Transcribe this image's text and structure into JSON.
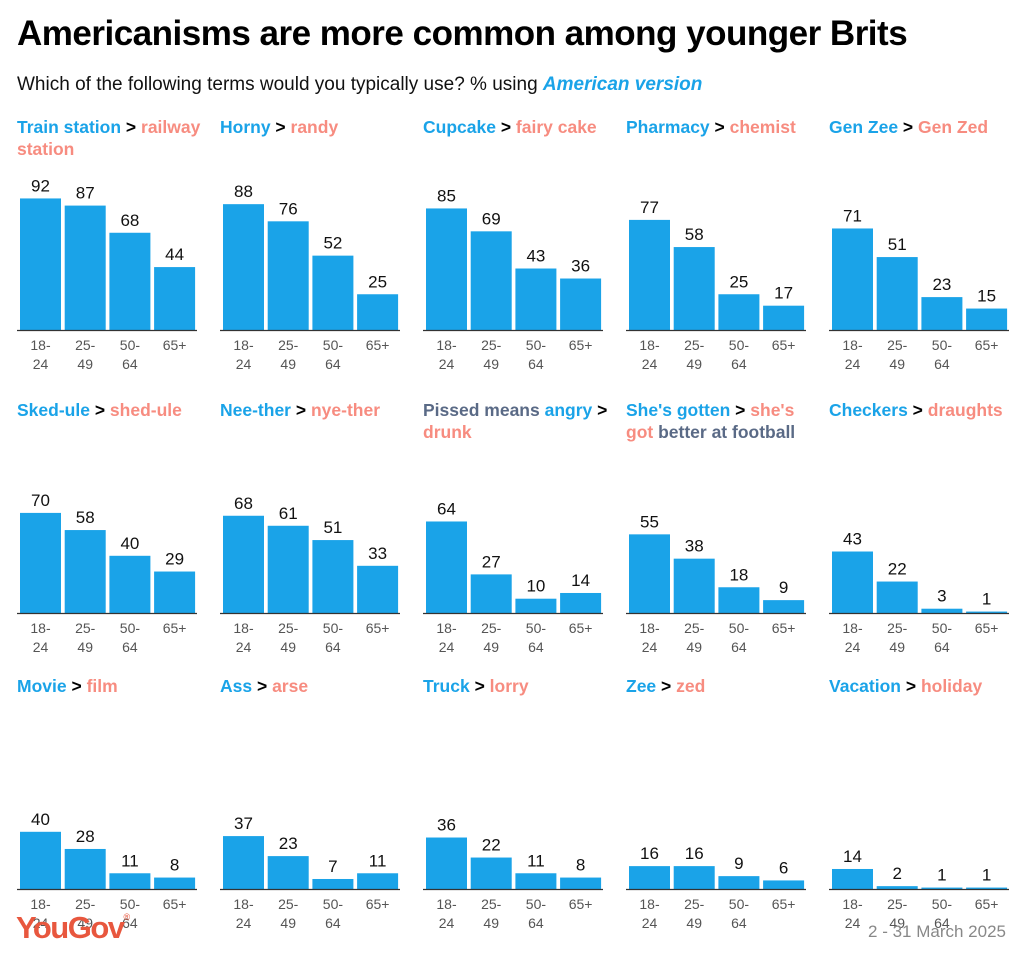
{
  "title": "Americanisms are more common among younger Brits",
  "subtitle": {
    "text": "Which of the following terms would you typically use? % using ",
    "highlight": "American version"
  },
  "categories": [
    "18-\n24",
    "25-\n49",
    "50-\n64",
    "65+"
  ],
  "colors": {
    "american": "#1aa3e8",
    "british": "#f78c80",
    "bar": "#1aa3e8"
  },
  "chart_data": [
    {
      "type": "bar",
      "title": [
        [
          "am",
          "Train station"
        ],
        [
          "gt",
          " >"
        ],
        [
          "br",
          " railway station"
        ]
      ],
      "categories": [
        "18-24",
        "25-49",
        "50-64",
        "65+"
      ],
      "values": [
        92,
        87,
        68,
        44
      ]
    },
    {
      "type": "bar",
      "title": [
        [
          "am",
          "Horny"
        ],
        [
          "gt",
          " >"
        ],
        [
          "br",
          " randy"
        ]
      ],
      "categories": [
        "18-24",
        "25-49",
        "50-64",
        "65+"
      ],
      "values": [
        88,
        76,
        52,
        25
      ]
    },
    {
      "type": "bar",
      "title": [
        [
          "am",
          "Cupcake"
        ],
        [
          "gt",
          " >"
        ],
        [
          "br",
          " fairy cake"
        ]
      ],
      "categories": [
        "18-24",
        "25-49",
        "50-64",
        "65+"
      ],
      "values": [
        85,
        69,
        43,
        36
      ]
    },
    {
      "type": "bar",
      "title": [
        [
          "am",
          "Pharmacy"
        ],
        [
          "gt",
          " >"
        ],
        [
          "br",
          " chemist"
        ]
      ],
      "categories": [
        "18-24",
        "25-49",
        "50-64",
        "65+"
      ],
      "values": [
        77,
        58,
        25,
        17
      ]
    },
    {
      "type": "bar",
      "title": [
        [
          "am",
          "Gen Zee"
        ],
        [
          "gt",
          " >"
        ],
        [
          "br",
          " Gen Zed"
        ]
      ],
      "categories": [
        "18-24",
        "25-49",
        "50-64",
        "65+"
      ],
      "values": [
        71,
        51,
        23,
        15
      ]
    },
    {
      "type": "bar",
      "title": [
        [
          "am",
          "Sked-ule"
        ],
        [
          "gt",
          " >"
        ],
        [
          "br",
          " shed-ule"
        ]
      ],
      "categories": [
        "18-24",
        "25-49",
        "50-64",
        "65+"
      ],
      "values": [
        70,
        58,
        40,
        29
      ]
    },
    {
      "type": "bar",
      "title": [
        [
          "am",
          "Nee-ther"
        ],
        [
          "gt",
          " >"
        ],
        [
          "br",
          " nye-ther"
        ]
      ],
      "categories": [
        "18-24",
        "25-49",
        "50-64",
        "65+"
      ],
      "values": [
        68,
        61,
        51,
        33
      ]
    },
    {
      "type": "bar",
      "title": [
        [
          "nt",
          "Pissed means "
        ],
        [
          "am",
          "angry"
        ],
        [
          "gt",
          " >"
        ],
        [
          "br",
          " drunk"
        ]
      ],
      "categories": [
        "18-24",
        "25-49",
        "50-64",
        "65+"
      ],
      "values": [
        64,
        27,
        10,
        14
      ]
    },
    {
      "type": "bar",
      "title": [
        [
          "am",
          "She's gotten"
        ],
        [
          "gt",
          " >"
        ],
        [
          "br",
          " she's got"
        ],
        [
          "nt",
          " better at football"
        ]
      ],
      "categories": [
        "18-24",
        "25-49",
        "50-64",
        "65+"
      ],
      "values": [
        55,
        38,
        18,
        9
      ]
    },
    {
      "type": "bar",
      "title": [
        [
          "am",
          "Checkers"
        ],
        [
          "gt",
          " >"
        ],
        [
          "br",
          " draughts"
        ]
      ],
      "categories": [
        "18-24",
        "25-49",
        "50-64",
        "65+"
      ],
      "values": [
        43,
        22,
        3,
        1
      ]
    },
    {
      "type": "bar",
      "title": [
        [
          "am",
          "Movie"
        ],
        [
          "gt",
          " >"
        ],
        [
          "br",
          " film"
        ]
      ],
      "categories": [
        "18-24",
        "25-49",
        "50-64",
        "65+"
      ],
      "values": [
        40,
        28,
        11,
        8
      ]
    },
    {
      "type": "bar",
      "title": [
        [
          "am",
          "Ass"
        ],
        [
          "gt",
          " >"
        ],
        [
          "br",
          " arse"
        ]
      ],
      "categories": [
        "18-24",
        "25-49",
        "50-64",
        "65+"
      ],
      "values": [
        37,
        23,
        7,
        11
      ]
    },
    {
      "type": "bar",
      "title": [
        [
          "am",
          "Truck"
        ],
        [
          "gt",
          " >"
        ],
        [
          "br",
          " lorry"
        ]
      ],
      "categories": [
        "18-24",
        "25-49",
        "50-64",
        "65+"
      ],
      "values": [
        36,
        22,
        11,
        8
      ]
    },
    {
      "type": "bar",
      "title": [
        [
          "am",
          "Zee"
        ],
        [
          "gt",
          " >"
        ],
        [
          "br",
          " zed"
        ]
      ],
      "categories": [
        "18-24",
        "25-49",
        "50-64",
        "65+"
      ],
      "values": [
        16,
        16,
        9,
        6
      ]
    },
    {
      "type": "bar",
      "title": [
        [
          "am",
          "Vacation"
        ],
        [
          "gt",
          " >"
        ],
        [
          "br",
          " holiday"
        ]
      ],
      "categories": [
        "18-24",
        "25-49",
        "50-64",
        "65+"
      ],
      "values": [
        14,
        2,
        1,
        1
      ]
    }
  ],
  "footer": {
    "logo": "YouGov",
    "logo_mark": "®",
    "date": "2 - 31 March 2025"
  }
}
